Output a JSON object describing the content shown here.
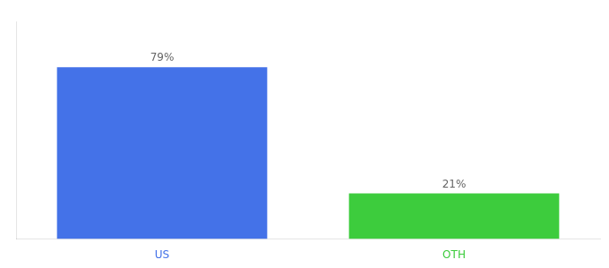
{
  "chart_data": {
    "type": "bar",
    "categories": [
      "US",
      "OTH"
    ],
    "values": [
      79,
      21
    ],
    "value_labels": [
      "79%",
      "21%"
    ],
    "colors": [
      "#4472e8",
      "#3dcc3d"
    ],
    "ylim": [
      0,
      100
    ],
    "data_labels": true,
    "tick_labels": "x",
    "grid": false
  }
}
